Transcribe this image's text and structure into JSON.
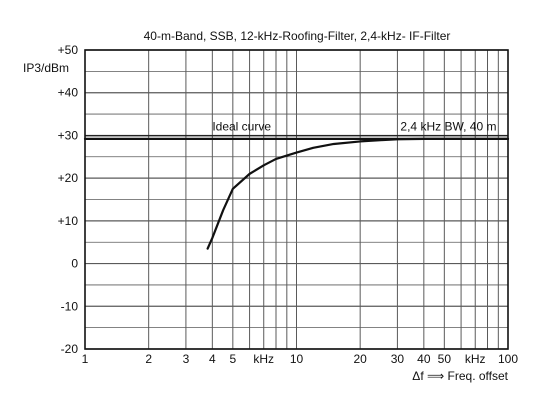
{
  "chart_data": {
    "type": "line",
    "title": "40-m-Band, SSB, 12-kHz-Roofing-Filter, 2,4-kHz- IF-Filter",
    "ylabel": "IP3/dBm",
    "xlabel": "Δf ⟹ Freq. offset",
    "x_scale": "log",
    "xlim": [
      1,
      100
    ],
    "ylim": [
      -20,
      50
    ],
    "grid": true,
    "x_tick_labels": [
      {
        "x": 1,
        "label": "1"
      },
      {
        "x": 2,
        "label": "2"
      },
      {
        "x": 3,
        "label": "3"
      },
      {
        "x": 4,
        "label": "4"
      },
      {
        "x": 5,
        "label": "5"
      },
      {
        "x": 7,
        "label": "kHz"
      },
      {
        "x": 10,
        "label": "10"
      },
      {
        "x": 20,
        "label": "20"
      },
      {
        "x": 30,
        "label": "30"
      },
      {
        "x": 40,
        "label": "40"
      },
      {
        "x": 50,
        "label": "50"
      },
      {
        "x": 70,
        "label": "kHz"
      },
      {
        "x": 100,
        "label": "100"
      }
    ],
    "y_tick_labels": [
      {
        "y": 50,
        "label": "+50"
      },
      {
        "y": 40,
        "label": "+40"
      },
      {
        "y": 30,
        "label": "+30"
      },
      {
        "y": 20,
        "label": "+20"
      },
      {
        "y": 10,
        "label": "+10"
      },
      {
        "y": 0,
        "label": "0"
      },
      {
        "y": -10,
        "label": "-10"
      },
      {
        "y": -20,
        "label": "-20"
      }
    ],
    "series": [
      {
        "name": "Ideal curve",
        "style": "flat",
        "x": [
          1,
          100
        ],
        "y": [
          29.2,
          29.2
        ]
      },
      {
        "name": "2,4 kHz BW, 40 m",
        "style": "curve",
        "x": [
          3.8,
          4.0,
          4.5,
          5.0,
          6.0,
          7.0,
          8.0,
          10.0,
          12.0,
          15.0,
          20.0,
          25.0,
          30.0,
          40.0,
          50.0,
          70.0,
          100.0
        ],
        "y": [
          3.5,
          6.0,
          12.5,
          17.5,
          21.0,
          23.0,
          24.5,
          26.0,
          27.1,
          28.0,
          28.6,
          28.9,
          29.1,
          29.2,
          29.2,
          29.2,
          29.2
        ]
      }
    ],
    "annotations": [
      {
        "text": "Ideal curve",
        "x": 4.0,
        "y": 31.2
      },
      {
        "text": "2,4 kHz BW, 40 m",
        "x": 31.0,
        "y": 31.2
      }
    ],
    "colors": {
      "background": "#ffffff",
      "grid": "#5a5a5a",
      "curve": "#111111"
    }
  }
}
